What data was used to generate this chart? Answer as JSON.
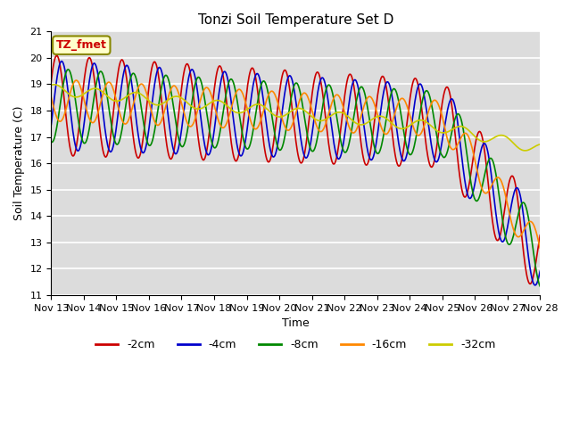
{
  "title": "Tonzi Soil Temperature Set D",
  "xlabel": "Time",
  "ylabel": "Soil Temperature (C)",
  "ylim": [
    11.0,
    21.0
  ],
  "yticks": [
    11.0,
    12.0,
    13.0,
    14.0,
    15.0,
    16.0,
    17.0,
    18.0,
    19.0,
    20.0,
    21.0
  ],
  "bg_color": "#dcdcdc",
  "legend_entries": [
    "-2cm",
    "-4cm",
    "-8cm",
    "-16cm",
    "-32cm"
  ],
  "legend_colors": [
    "#cc0000",
    "#0000cc",
    "#008800",
    "#ff8800",
    "#cccc00"
  ],
  "annotation_text": "TZ_fmet",
  "annotation_bg": "#ffffcc",
  "annotation_fg": "#cc0000",
  "line_width": 1.2,
  "xtick_labels": [
    "Nov 13",
    "Nov 14",
    "Nov 15",
    "Nov 16",
    "Nov 17",
    "Nov 18",
    "Nov 19",
    "Nov 20",
    "Nov 21",
    "Nov 22",
    "Nov 23",
    "Nov 24",
    "Nov 25",
    "Nov 26",
    "Nov 27",
    "Nov 28"
  ]
}
